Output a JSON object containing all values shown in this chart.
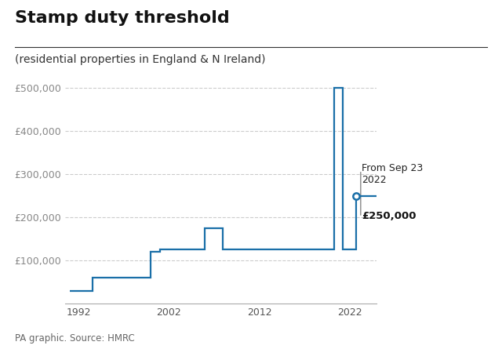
{
  "title": "Stamp duty threshold",
  "subtitle": "(residential properties in England & N Ireland)",
  "source": "PA graphic. Source: HMRC",
  "line_color": "#1a6fa8",
  "background_color": "#ffffff",
  "marker_x": 2022.75,
  "marker_y": 250000,
  "xlim": [
    1990.5,
    2025
  ],
  "ylim": [
    0,
    550000
  ],
  "xticks": [
    1992,
    2002,
    2012,
    2022
  ],
  "yticks": [
    100000,
    200000,
    300000,
    400000,
    500000
  ],
  "ytick_labels": [
    "£100,000",
    "£200,000",
    "£300,000",
    "£400,000",
    "£500,000"
  ],
  "step_x": [
    1991,
    1993.5,
    1993.5,
    2000,
    2000,
    2001,
    2001,
    2006,
    2006,
    2008,
    2008,
    2009,
    2009,
    2014,
    2014,
    2020.3,
    2020.3,
    2021.3,
    2021.3,
    2022.75,
    2022.75,
    2025
  ],
  "step_y": [
    30000,
    30000,
    60000,
    60000,
    120000,
    120000,
    125000,
    125000,
    175000,
    175000,
    125000,
    125000,
    125000,
    125000,
    125000,
    125000,
    500000,
    500000,
    125000,
    125000,
    250000,
    250000
  ],
  "title_fontsize": 16,
  "subtitle_fontsize": 10,
  "tick_fontsize": 9,
  "source_fontsize": 8.5
}
